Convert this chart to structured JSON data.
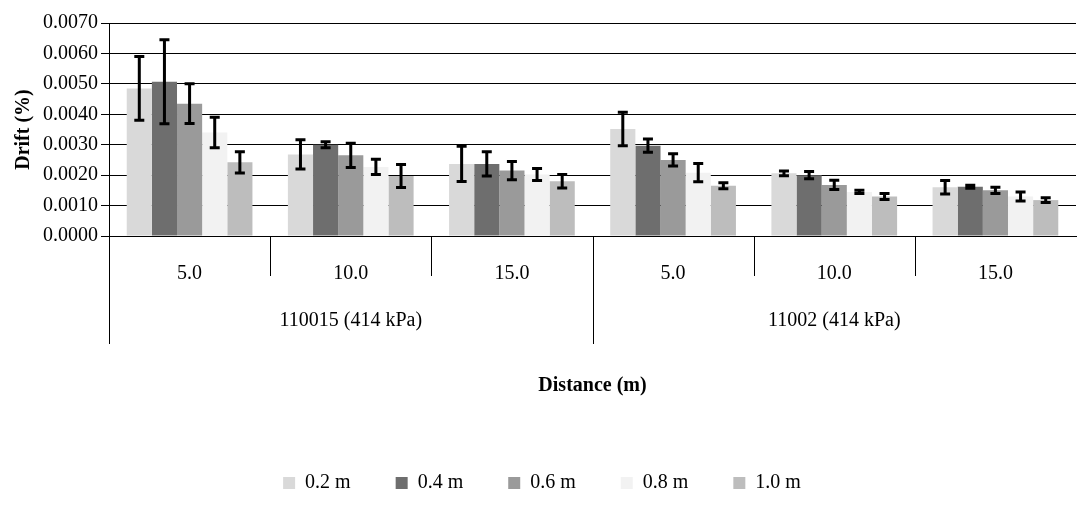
{
  "chart_data": {
    "type": "bar",
    "xlabel": "Distance (m)",
    "ylabel": "Drift (%)",
    "categories": [
      "5.0",
      "10.0",
      "15.0",
      "5.0",
      "10.0",
      "15.0"
    ],
    "series": [
      {
        "name": "0.2 m",
        "color": "#d9d9d9",
        "values": [
          0.00485,
          0.00268,
          0.00237,
          0.00352,
          0.00206,
          0.0016
        ],
        "errors": [
          0.00105,
          0.00048,
          0.00058,
          0.00055,
          8e-05,
          0.00022
        ]
      },
      {
        "name": "0.4 m",
        "color": "#6e6e6e",
        "values": [
          0.00507,
          0.003,
          0.00237,
          0.00297,
          0.002,
          0.00162
        ],
        "errors": [
          0.00138,
          0.0001,
          0.0004,
          0.00022,
          0.00012,
          5e-05
        ]
      },
      {
        "name": "0.6 m",
        "color": "#9a9a9a",
        "values": [
          0.00435,
          0.00265,
          0.00215,
          0.0025,
          0.00168,
          0.0015
        ],
        "errors": [
          0.00065,
          0.0004,
          0.0003,
          0.0002,
          0.00015,
          0.0001
        ]
      },
      {
        "name": "0.8 m",
        "color": "#f2f2f2",
        "values": [
          0.0034,
          0.00227,
          0.00202,
          0.00208,
          0.00145,
          0.0013
        ],
        "errors": [
          0.0005,
          0.00025,
          0.0002,
          0.0003,
          5e-05,
          0.00015
        ]
      },
      {
        "name": "1.0 m",
        "color": "#bdbdbd",
        "values": [
          0.00242,
          0.00197,
          0.0018,
          0.00165,
          0.0013,
          0.00118
        ],
        "errors": [
          0.00035,
          0.00038,
          0.00022,
          0.0001,
          0.0001,
          8e-05
        ]
      }
    ],
    "annotations": [
      "110015 (414 kPa)",
      "11002 (414 kPa)"
    ],
    "ylim": [
      0,
      0.007
    ],
    "yticks": [
      {
        "value": 0,
        "label": "0.0000"
      },
      {
        "value": 0.001,
        "label": "0.0010"
      },
      {
        "value": 0.002,
        "label": "0.0020"
      },
      {
        "value": 0.003,
        "label": "0.0030"
      },
      {
        "value": 0.004,
        "label": "0.0040"
      },
      {
        "value": 0.005,
        "label": "0.0050"
      },
      {
        "value": 0.006,
        "label": "0.0060"
      },
      {
        "value": 0.007,
        "label": "0.0070"
      }
    ],
    "grid": "y",
    "legend": "bottom"
  }
}
